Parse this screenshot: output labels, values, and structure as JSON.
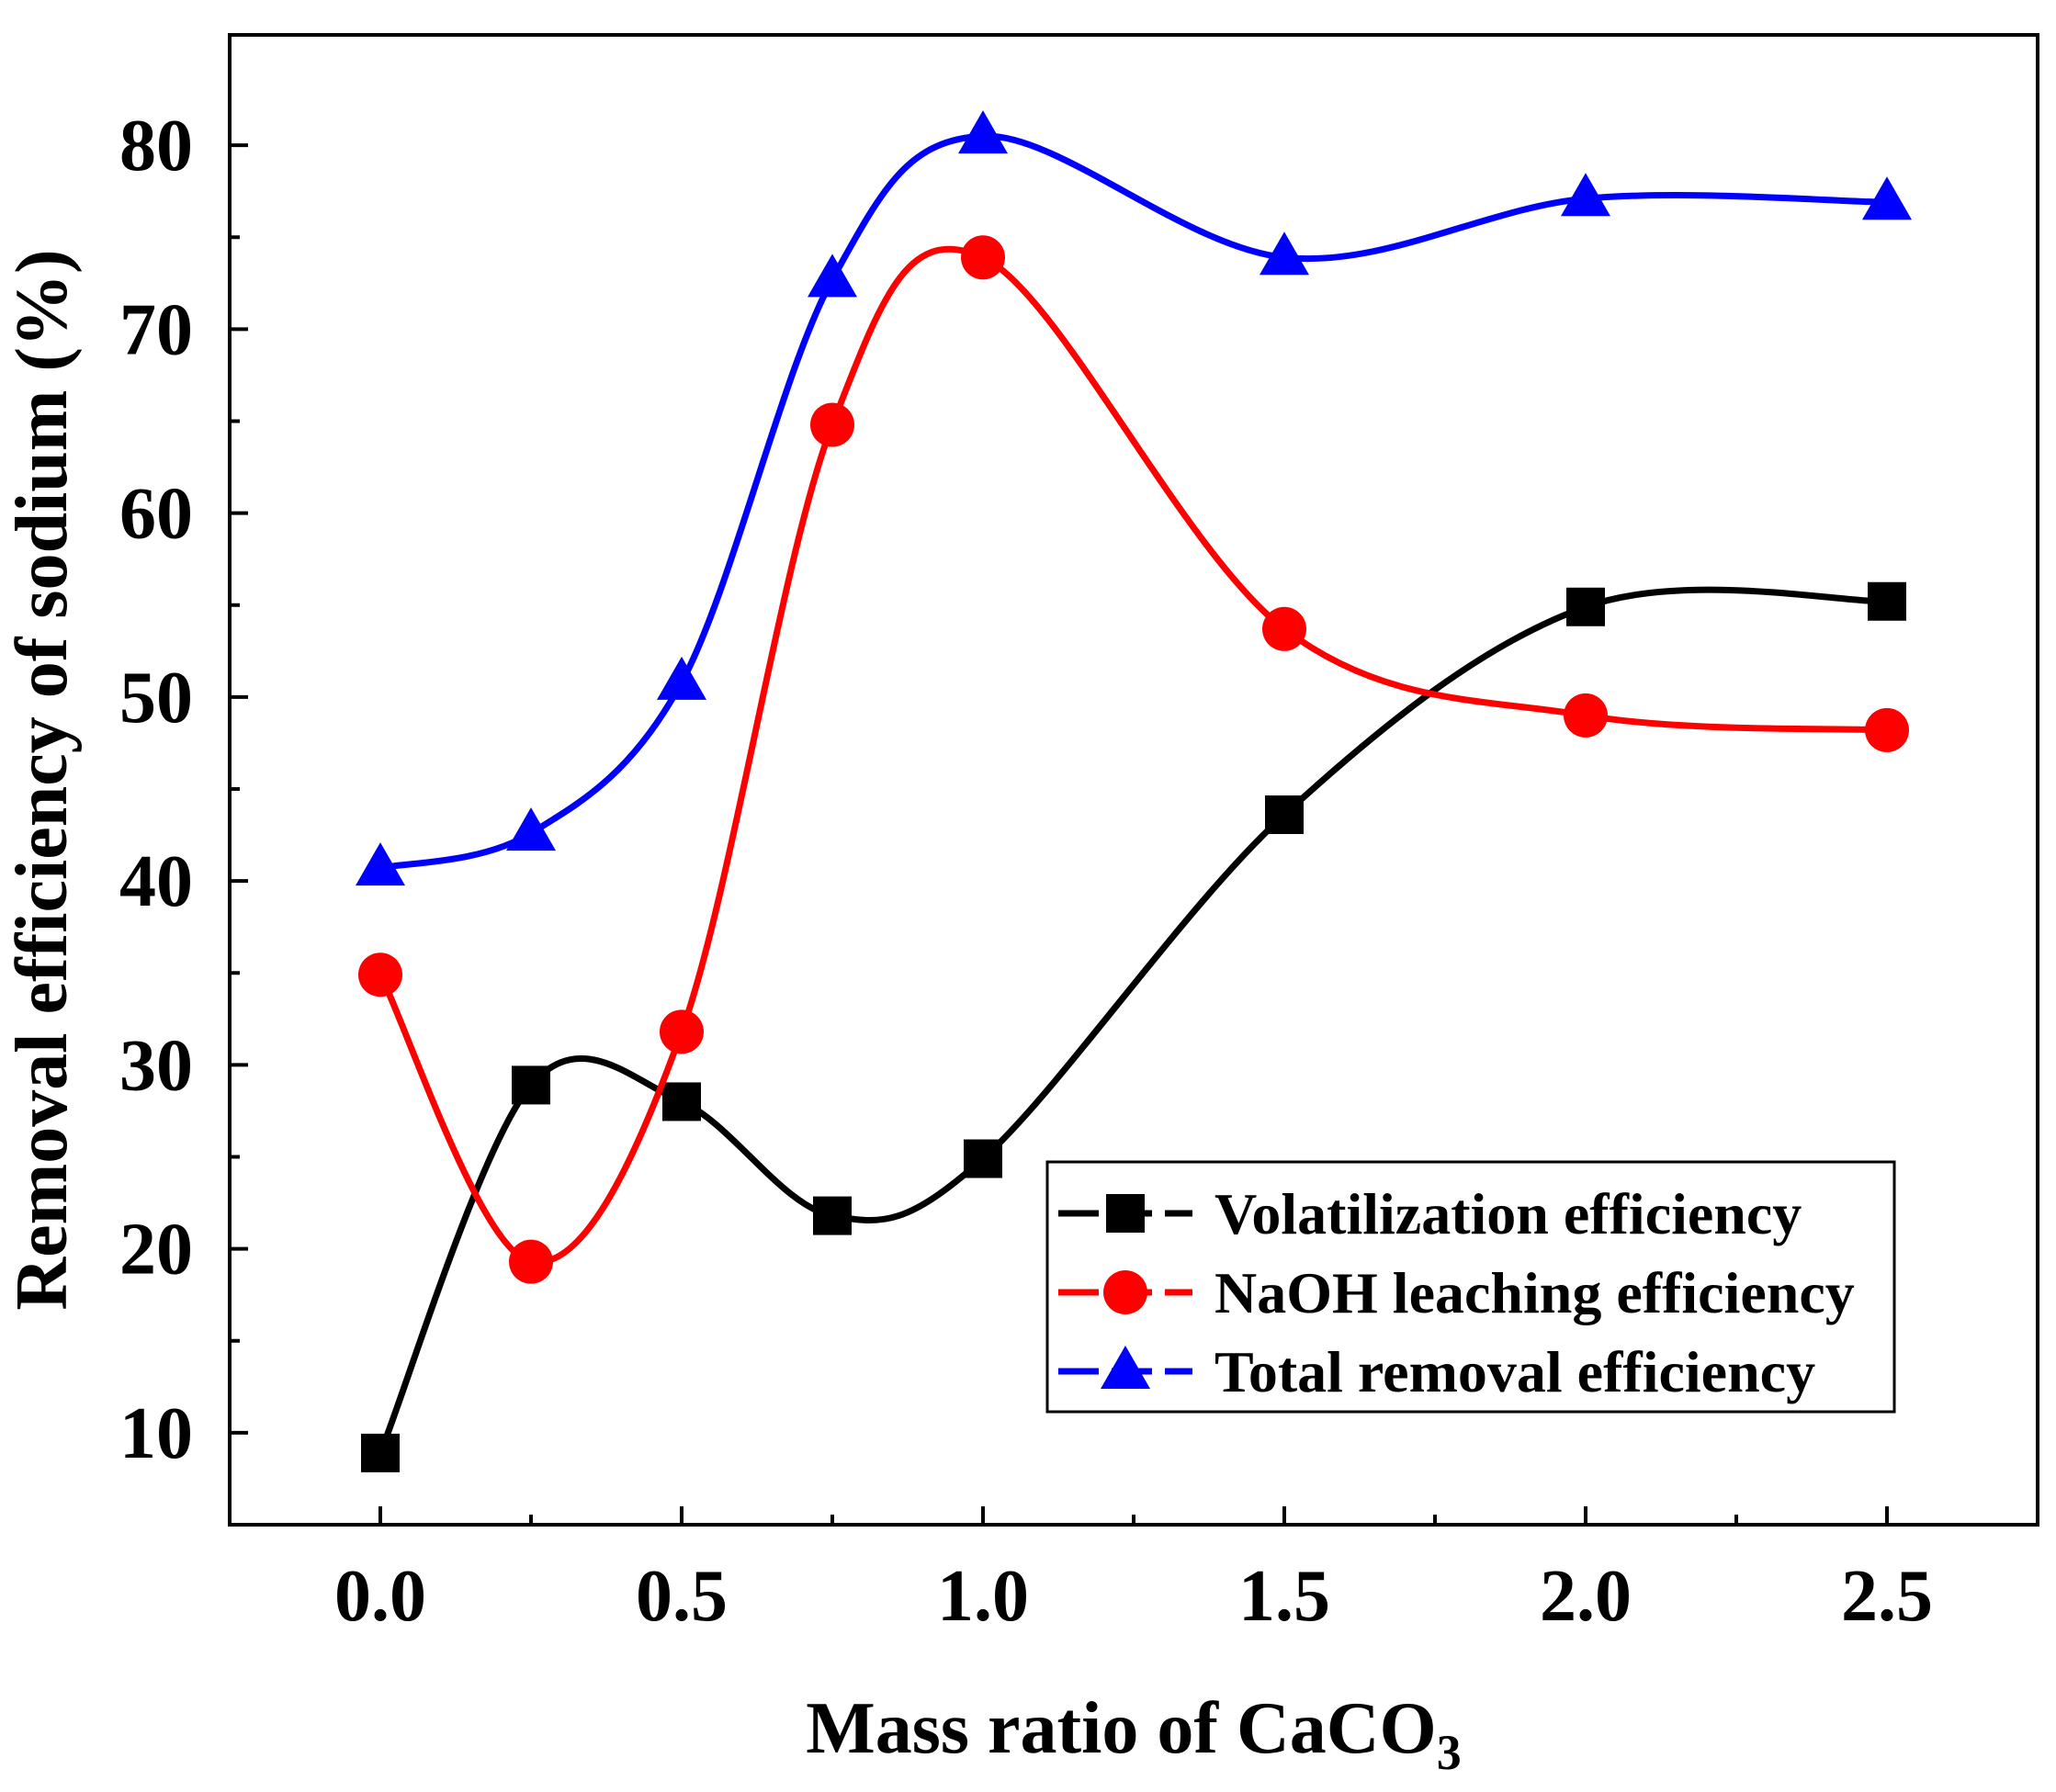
{
  "chart_data": {
    "type": "line",
    "title": "",
    "xlabel": "Mass ratio of CaCO",
    "xlabel_subscript": "3",
    "ylabel": "Removal efficiency of sodium (%)",
    "xlim": [
      -0.25,
      2.75
    ],
    "ylim": [
      5,
      86
    ],
    "xticks": [
      0.0,
      0.5,
      1.0,
      1.5,
      2.0,
      2.5
    ],
    "xtick_labels": [
      "0.0",
      "0.5",
      "1.0",
      "1.5",
      "2.0",
      "2.5"
    ],
    "xminor": [
      0.25,
      0.75,
      1.25,
      1.75,
      2.25
    ],
    "yticks": [
      10,
      20,
      30,
      40,
      50,
      60,
      70,
      80
    ],
    "ytick_labels": [
      "10",
      "20",
      "30",
      "40",
      "50",
      "60",
      "70",
      "80"
    ],
    "yminor": [
      15,
      25,
      35,
      45,
      55,
      65,
      75
    ],
    "x": [
      0.0,
      0.25,
      0.5,
      0.75,
      1.0,
      1.5,
      2.0,
      2.5
    ],
    "series": [
      {
        "name": "Volatilization efficiency",
        "color": "#000000",
        "marker": "square",
        "values": [
          8.9,
          28.9,
          28.0,
          21.8,
          24.9,
          43.6,
          54.9,
          55.2
        ]
      },
      {
        "name": "NaOH leaching efficiency",
        "color": "#ff0000",
        "marker": "circle",
        "values": [
          34.9,
          19.3,
          31.8,
          64.8,
          73.9,
          53.7,
          49.0,
          48.2
        ]
      },
      {
        "name": "Total removal efficiency",
        "color": "#0000ff",
        "marker": "triangle",
        "values": [
          40.7,
          42.6,
          50.8,
          72.7,
          80.5,
          73.9,
          77.1,
          76.9
        ]
      }
    ],
    "legend_position": "bottom-right",
    "grid": false
  }
}
